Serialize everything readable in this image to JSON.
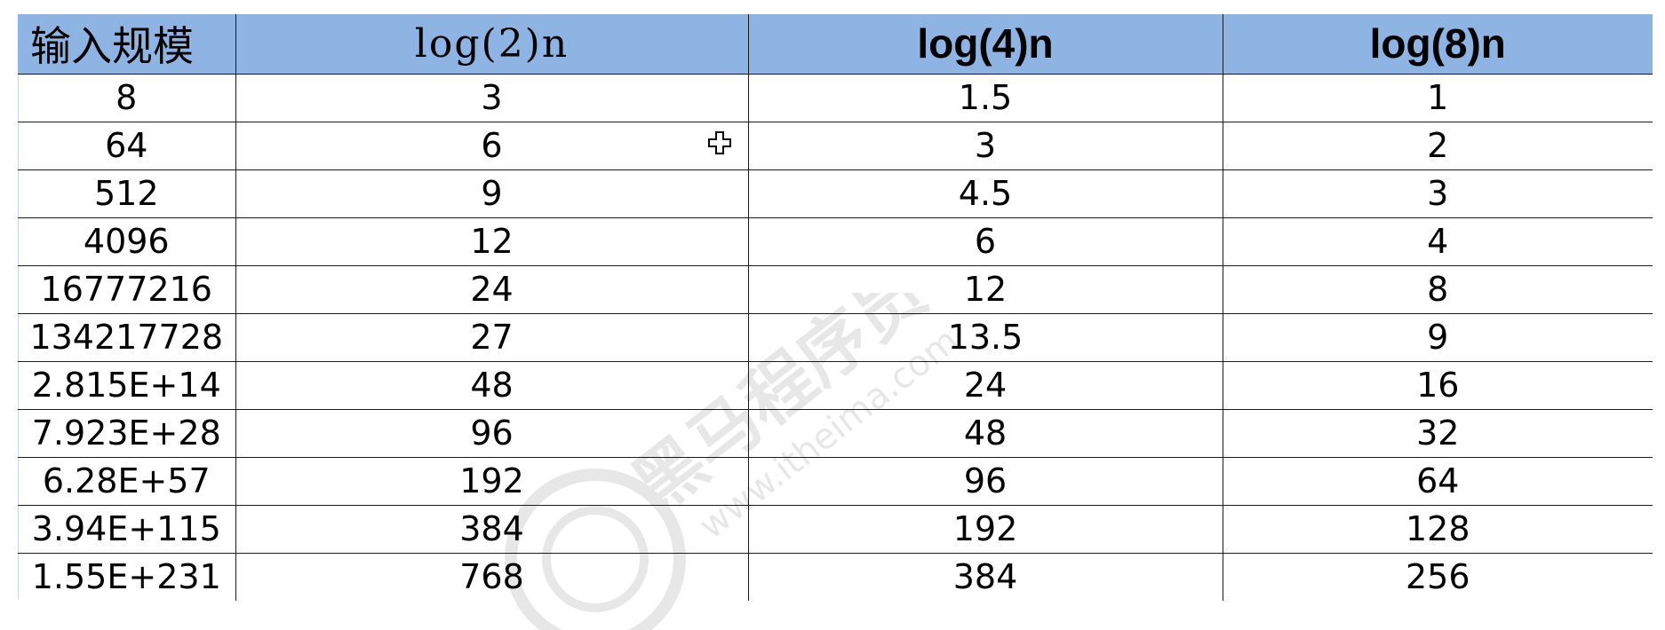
{
  "chart_data": {
    "type": "table",
    "columns": [
      "输入规模",
      "log(2)n",
      "log(4)n",
      "log(8)n"
    ],
    "rows": [
      [
        "8",
        "3",
        "1.5",
        "1"
      ],
      [
        "64",
        "6",
        "3",
        "2"
      ],
      [
        "512",
        "9",
        "4.5",
        "3"
      ],
      [
        "4096",
        "12",
        "6",
        "4"
      ],
      [
        "16777216",
        "24",
        "12",
        "8"
      ],
      [
        "134217728",
        "27",
        "13.5",
        "9"
      ],
      [
        "2.815E+14",
        "48",
        "24",
        "16"
      ],
      [
        "7.923E+28",
        "96",
        "48",
        "32"
      ],
      [
        "6.28E+57",
        "192",
        "96",
        "64"
      ],
      [
        "3.94E+115",
        "384",
        "192",
        "128"
      ],
      [
        "1.55E+231",
        "768",
        "384",
        "256"
      ]
    ]
  },
  "colors": {
    "header_bg": "#8db4e2",
    "grid": "#1a1a1a",
    "text": "#000000"
  },
  "icons": {
    "cursor": "cell-select-cross-icon",
    "watermark": "brand-watermark-logo"
  },
  "watermark_text": {
    "brand": "黑马程序员",
    "url": "www.itheima.com"
  }
}
